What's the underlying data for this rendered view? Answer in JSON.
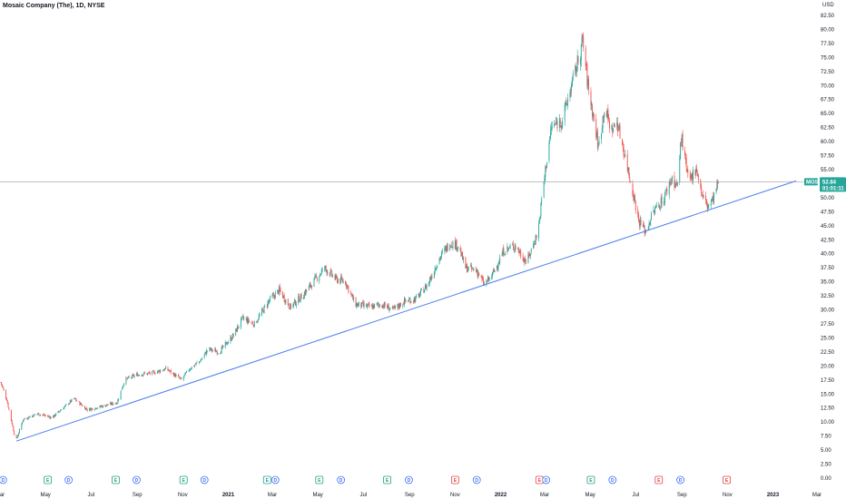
{
  "header": {
    "title": "Mosaic Company (The), 1D, NYSE",
    "currency": "USD"
  },
  "colors": {
    "up": "#26a69a",
    "down": "#ef5350",
    "trendline": "#4a7cf0",
    "priceline": "#9e9e9e",
    "tag_bg": "#26a69a",
    "dividend": "#3a6ff0",
    "earnings": "#22a086",
    "earnings_future": "#e64545"
  },
  "price_tag": {
    "symbol": "MOS",
    "price": "52.84",
    "countdown": "01:01:11"
  },
  "events": [
    {
      "type": "D",
      "date": "2020-03-05"
    },
    {
      "type": "E",
      "date": "2020-05-04"
    },
    {
      "type": "D",
      "date": "2020-06-01"
    },
    {
      "type": "E",
      "date": "2020-08-03"
    },
    {
      "type": "D",
      "date": "2020-08-31"
    },
    {
      "type": "E",
      "date": "2020-11-02"
    },
    {
      "type": "D",
      "date": "2020-11-30"
    },
    {
      "type": "E",
      "date": "2021-02-22"
    },
    {
      "type": "D",
      "date": "2021-03-05"
    },
    {
      "type": "E",
      "date": "2021-05-03"
    },
    {
      "type": "D",
      "date": "2021-06-01"
    },
    {
      "type": "E",
      "date": "2021-08-02"
    },
    {
      "type": "D",
      "date": "2021-08-31"
    },
    {
      "type": "E",
      "date": "2021-11-01",
      "variant": "red"
    },
    {
      "type": "D",
      "date": "2021-11-30"
    },
    {
      "type": "E",
      "date": "2022-02-22",
      "variant": "red"
    },
    {
      "type": "D",
      "date": "2022-03-03"
    },
    {
      "type": "E",
      "date": "2022-05-02"
    },
    {
      "type": "D",
      "date": "2022-05-31"
    },
    {
      "type": "E",
      "date": "2022-08-01",
      "variant": "red"
    },
    {
      "type": "D",
      "date": "2022-08-30"
    },
    {
      "type": "E",
      "date": "2022-10-31",
      "variant": "future"
    }
  ],
  "chart_data": {
    "type": "candlestick",
    "title": "Mosaic Company (The), 1D, NYSE",
    "y_axis": {
      "unit": "USD",
      "range": [
        0,
        82.5
      ],
      "ticks": [
        "0.00",
        "2.50",
        "5.00",
        "7.50",
        "10.00",
        "12.50",
        "15.00",
        "17.50",
        "20.00",
        "22.50",
        "25.00",
        "27.50",
        "30.00",
        "32.50",
        "35.00",
        "37.50",
        "40.00",
        "42.50",
        "45.00",
        "47.50",
        "50.00",
        "52.50",
        "55.00",
        "57.50",
        "60.00",
        "62.50",
        "65.00",
        "67.50",
        "70.00",
        "72.50",
        "75.00",
        "77.50",
        "80.00",
        "82.50"
      ]
    },
    "x_axis": {
      "range": [
        "2020-03-01",
        "2023-03-01"
      ],
      "ticks": [
        {
          "label": "Mar",
          "date": "2020-03-01"
        },
        {
          "label": "May",
          "date": "2020-05-01"
        },
        {
          "label": "Jul",
          "date": "2020-07-01"
        },
        {
          "label": "Sep",
          "date": "2020-09-01"
        },
        {
          "label": "Nov",
          "date": "2020-11-01"
        },
        {
          "label": "2021",
          "date": "2021-01-01",
          "bold": true
        },
        {
          "label": "Mar",
          "date": "2021-03-01"
        },
        {
          "label": "May",
          "date": "2021-05-01"
        },
        {
          "label": "Jul",
          "date": "2021-07-01"
        },
        {
          "label": "Sep",
          "date": "2021-09-01"
        },
        {
          "label": "Nov",
          "date": "2021-11-01"
        },
        {
          "label": "2022",
          "date": "2022-01-01",
          "bold": true
        },
        {
          "label": "Mar",
          "date": "2022-03-01"
        },
        {
          "label": "May",
          "date": "2022-05-01"
        },
        {
          "label": "Jul",
          "date": "2022-07-01"
        },
        {
          "label": "Sep",
          "date": "2022-09-01"
        },
        {
          "label": "Nov",
          "date": "2022-11-01"
        },
        {
          "label": "2023",
          "date": "2023-01-01",
          "bold": true
        },
        {
          "label": "Mar",
          "date": "2023-03-01"
        }
      ]
    },
    "last_price": 52.84,
    "close_anchors": [
      [
        "2020-03-01",
        17.5
      ],
      [
        "2020-03-10",
        14.0
      ],
      [
        "2020-03-20",
        8.0
      ],
      [
        "2020-03-23",
        6.9
      ],
      [
        "2020-04-01",
        10.5
      ],
      [
        "2020-04-20",
        11.5
      ],
      [
        "2020-05-10",
        10.8
      ],
      [
        "2020-05-20",
        12.0
      ],
      [
        "2020-06-08",
        14.2
      ],
      [
        "2020-06-26",
        12.2
      ],
      [
        "2020-07-15",
        12.8
      ],
      [
        "2020-08-05",
        13.5
      ],
      [
        "2020-08-15",
        17.5
      ],
      [
        "2020-09-01",
        18.5
      ],
      [
        "2020-09-20",
        18.7
      ],
      [
        "2020-10-10",
        19.5
      ],
      [
        "2020-10-30",
        17.5
      ],
      [
        "2020-11-10",
        19.5
      ],
      [
        "2020-11-25",
        21.0
      ],
      [
        "2020-12-05",
        23.0
      ],
      [
        "2020-12-20",
        22.5
      ],
      [
        "2021-01-08",
        25.5
      ],
      [
        "2021-01-20",
        28.5
      ],
      [
        "2021-02-05",
        27.5
      ],
      [
        "2021-02-24",
        31.5
      ],
      [
        "2021-03-10",
        33.5
      ],
      [
        "2021-03-25",
        30.5
      ],
      [
        "2021-04-10",
        32.5
      ],
      [
        "2021-04-25",
        35.0
      ],
      [
        "2021-05-10",
        37.5
      ],
      [
        "2021-05-25",
        35.5
      ],
      [
        "2021-06-07",
        35.0
      ],
      [
        "2021-06-20",
        31.0
      ],
      [
        "2021-07-10",
        30.5
      ],
      [
        "2021-07-25",
        31.0
      ],
      [
        "2021-08-10",
        30.0
      ],
      [
        "2021-08-25",
        31.5
      ],
      [
        "2021-09-10",
        32.0
      ],
      [
        "2021-09-25",
        34.5
      ],
      [
        "2021-10-10",
        39.0
      ],
      [
        "2021-10-25",
        42.0
      ],
      [
        "2021-11-05",
        41.5
      ],
      [
        "2021-11-15",
        37.5
      ],
      [
        "2021-11-30",
        37.0
      ],
      [
        "2021-12-10",
        34.5
      ],
      [
        "2021-12-20",
        36.0
      ],
      [
        "2022-01-05",
        40.5
      ],
      [
        "2022-01-20",
        41.5
      ],
      [
        "2022-02-05",
        38.5
      ],
      [
        "2022-02-20",
        44.0
      ],
      [
        "2022-03-02",
        55.0
      ],
      [
        "2022-03-10",
        62.5
      ],
      [
        "2022-03-25",
        64.0
      ],
      [
        "2022-04-05",
        69.5
      ],
      [
        "2022-04-15",
        74.5
      ],
      [
        "2022-04-21",
        78.0
      ],
      [
        "2022-04-28",
        70.0
      ],
      [
        "2022-05-06",
        64.0
      ],
      [
        "2022-05-12",
        59.0
      ],
      [
        "2022-05-20",
        66.0
      ],
      [
        "2022-05-30",
        62.0
      ],
      [
        "2022-06-06",
        63.5
      ],
      [
        "2022-06-15",
        58.5
      ],
      [
        "2022-06-25",
        52.5
      ],
      [
        "2022-07-05",
        46.0
      ],
      [
        "2022-07-14",
        44.0
      ],
      [
        "2022-07-25",
        47.5
      ],
      [
        "2022-08-08",
        50.0
      ],
      [
        "2022-08-18",
        53.5
      ],
      [
        "2022-08-26",
        52.0
      ],
      [
        "2022-08-31",
        61.0
      ],
      [
        "2022-09-10",
        52.5
      ],
      [
        "2022-09-20",
        55.5
      ],
      [
        "2022-09-28",
        50.5
      ],
      [
        "2022-10-05",
        48.5
      ],
      [
        "2022-10-12",
        49.5
      ],
      [
        "2022-10-20",
        52.84
      ]
    ],
    "trendline": {
      "start": [
        "2020-03-23",
        6.6
      ],
      "end": [
        "2023-02-01",
        53.0
      ]
    }
  }
}
